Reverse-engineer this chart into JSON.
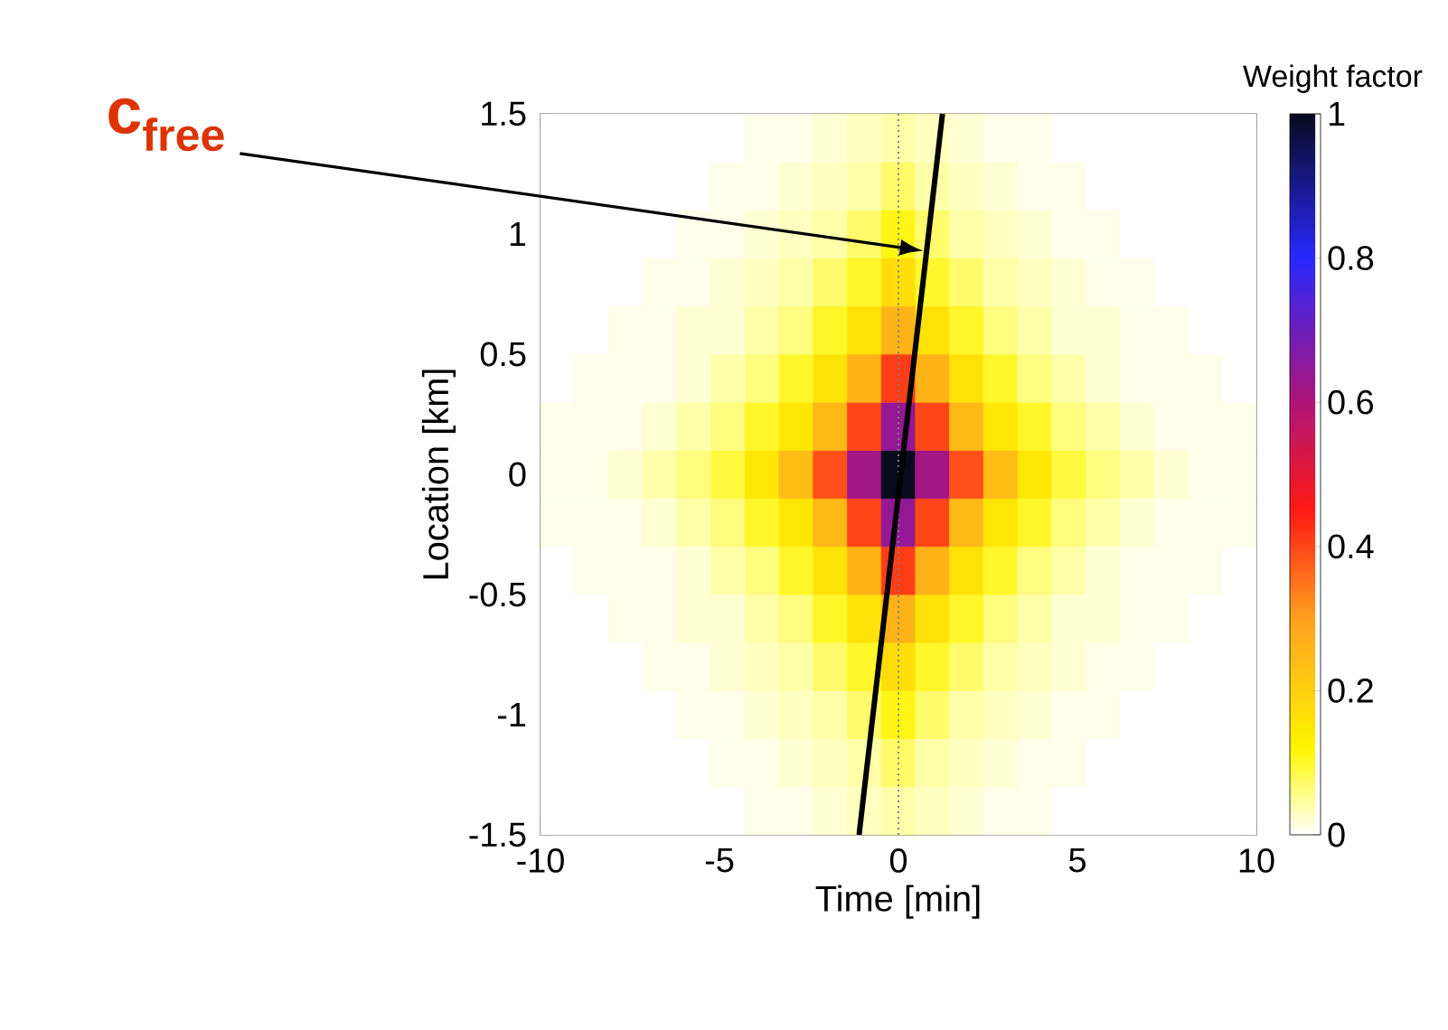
{
  "chart_data": {
    "type": "heatmap",
    "xlabel": "Time [min]",
    "ylabel": "Location [km]",
    "clabel": "Weight factor",
    "xlim": [
      -10,
      10
    ],
    "ylim": [
      -1.5,
      1.5
    ],
    "xticks": [
      -10,
      -5,
      0,
      5,
      10
    ],
    "yticks": [
      -1.5,
      -1,
      -0.5,
      0,
      0.5,
      1,
      1.5
    ],
    "clim": [
      0,
      1
    ],
    "cticks": [
      0,
      0.2,
      0.4,
      0.6,
      0.8,
      1
    ],
    "cells": [
      [
        0,
        0,
        0,
        0,
        0,
        0,
        0.01,
        0.01,
        0.02,
        0.03,
        0.04,
        0.03,
        0.02,
        0.01,
        0.01,
        0,
        0,
        0,
        0,
        0,
        0
      ],
      [
        0,
        0,
        0,
        0,
        0,
        0.01,
        0.01,
        0.02,
        0.03,
        0.04,
        0.07,
        0.04,
        0.03,
        0.02,
        0.01,
        0.01,
        0,
        0,
        0,
        0,
        0
      ],
      [
        0,
        0,
        0,
        0,
        0.01,
        0.01,
        0.02,
        0.03,
        0.04,
        0.07,
        0.11,
        0.07,
        0.04,
        0.03,
        0.02,
        0.01,
        0.01,
        0,
        0,
        0,
        0
      ],
      [
        0,
        0,
        0,
        0.01,
        0.01,
        0.02,
        0.03,
        0.04,
        0.07,
        0.1,
        0.17,
        0.1,
        0.07,
        0.04,
        0.03,
        0.02,
        0.01,
        0.01,
        0,
        0,
        0
      ],
      [
        0,
        0,
        0.01,
        0.01,
        0.02,
        0.02,
        0.04,
        0.06,
        0.1,
        0.16,
        0.26,
        0.16,
        0.1,
        0.06,
        0.04,
        0.02,
        0.02,
        0.01,
        0.01,
        0,
        0
      ],
      [
        0,
        0.01,
        0.01,
        0.01,
        0.02,
        0.04,
        0.06,
        0.1,
        0.16,
        0.26,
        0.41,
        0.26,
        0.16,
        0.1,
        0.06,
        0.04,
        0.02,
        0.01,
        0.01,
        0.01,
        0
      ],
      [
        0.01,
        0.01,
        0.01,
        0.02,
        0.04,
        0.06,
        0.1,
        0.15,
        0.25,
        0.4,
        0.64,
        0.4,
        0.25,
        0.15,
        0.1,
        0.06,
        0.04,
        0.02,
        0.01,
        0.01,
        0.01
      ],
      [
        0.01,
        0.01,
        0.02,
        0.04,
        0.06,
        0.09,
        0.15,
        0.24,
        0.39,
        0.62,
        1.0,
        0.62,
        0.39,
        0.24,
        0.15,
        0.09,
        0.06,
        0.04,
        0.02,
        0.01,
        0.01
      ],
      [
        0.01,
        0.01,
        0.01,
        0.02,
        0.04,
        0.06,
        0.1,
        0.15,
        0.25,
        0.4,
        0.64,
        0.4,
        0.25,
        0.15,
        0.1,
        0.06,
        0.04,
        0.02,
        0.01,
        0.01,
        0.01
      ],
      [
        0,
        0.01,
        0.01,
        0.01,
        0.02,
        0.04,
        0.06,
        0.1,
        0.16,
        0.26,
        0.41,
        0.26,
        0.16,
        0.1,
        0.06,
        0.04,
        0.02,
        0.01,
        0.01,
        0.01,
        0
      ],
      [
        0,
        0,
        0.01,
        0.01,
        0.02,
        0.02,
        0.04,
        0.06,
        0.1,
        0.16,
        0.26,
        0.16,
        0.1,
        0.06,
        0.04,
        0.02,
        0.02,
        0.01,
        0.01,
        0,
        0
      ],
      [
        0,
        0,
        0,
        0.01,
        0.01,
        0.02,
        0.03,
        0.04,
        0.07,
        0.1,
        0.17,
        0.1,
        0.07,
        0.04,
        0.03,
        0.02,
        0.01,
        0.01,
        0,
        0,
        0
      ],
      [
        0,
        0,
        0,
        0,
        0.01,
        0.01,
        0.02,
        0.03,
        0.04,
        0.07,
        0.11,
        0.07,
        0.04,
        0.03,
        0.02,
        0.01,
        0.01,
        0,
        0,
        0,
        0
      ],
      [
        0,
        0,
        0,
        0,
        0,
        0.01,
        0.01,
        0.02,
        0.03,
        0.04,
        0.07,
        0.04,
        0.03,
        0.02,
        0.01,
        0.01,
        0,
        0,
        0,
        0,
        0
      ],
      [
        0,
        0,
        0,
        0,
        0,
        0,
        0.01,
        0.01,
        0.02,
        0.03,
        0.04,
        0.03,
        0.02,
        0.01,
        0.01,
        0,
        0,
        0,
        0,
        0,
        0
      ]
    ],
    "series": [
      {
        "type": "line",
        "color": "#000000",
        "x": [
          -1.1,
          1.23
        ],
        "values": [
          -1.5,
          1.5
        ]
      }
    ],
    "ref_lines": [
      {
        "axis": "x",
        "value": 0,
        "color": "#808080",
        "line_style": "dotted"
      }
    ],
    "annotations": [
      "c$_{free}$"
    ]
  }
}
